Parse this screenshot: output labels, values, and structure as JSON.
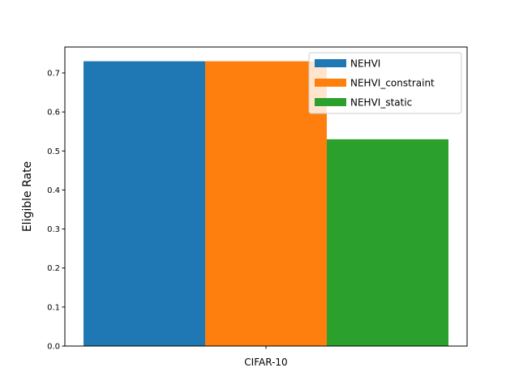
{
  "chart_data": {
    "type": "bar",
    "categories": [
      "CIFAR-10"
    ],
    "series": [
      {
        "name": "NEHVI",
        "values": [
          0.73
        ],
        "color": "#1f77b4"
      },
      {
        "name": "NEHVI_constraint",
        "values": [
          0.73
        ],
        "color": "#ff7f0e"
      },
      {
        "name": "NEHVI_static",
        "values": [
          0.53
        ],
        "color": "#2ca02c"
      }
    ],
    "title": "",
    "xlabel": "",
    "ylabel": "Eligible Rate",
    "ylim": [
      0,
      0.7665
    ],
    "yticks": [
      "0.0",
      "0.1",
      "0.2",
      "0.3",
      "0.4",
      "0.5",
      "0.6",
      "0.7"
    ],
    "grid": false,
    "legend_position": "top-right"
  }
}
